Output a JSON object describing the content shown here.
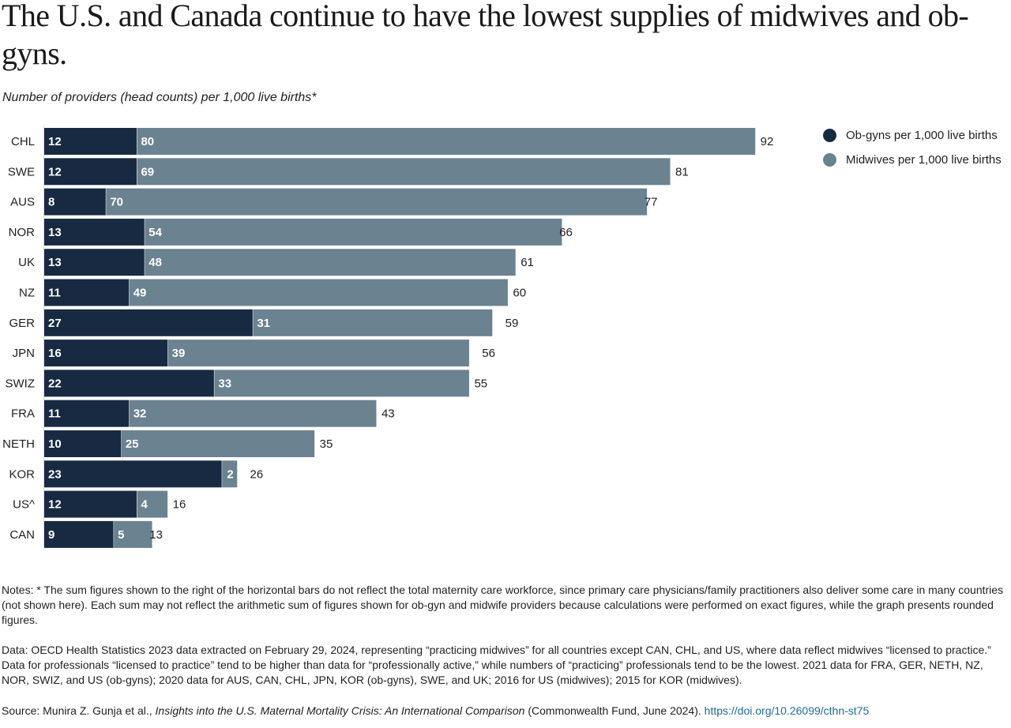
{
  "title": "The U.S. and Canada continue to have the lowest supplies of midwives and ob-gyns.",
  "subtitle": "Number of providers (head counts) per 1,000 live births*",
  "legend": [
    {
      "label": "Ob-gyns per 1,000 live births",
      "color": "#172a41"
    },
    {
      "label": "Midwives per 1,000 live births",
      "color": "#6b8290"
    }
  ],
  "chart_data": {
    "type": "bar",
    "orientation": "horizontal",
    "stacked": true,
    "title": "The U.S. and Canada continue to have the lowest supplies of midwives and ob-gyns.",
    "subtitle": "Number of providers (head counts) per 1,000 live births*",
    "xlabel": "",
    "ylabel": "",
    "xlim": [
      0,
      92
    ],
    "grid": false,
    "legend_position": "top-right",
    "categories": [
      "CHL",
      "SWE",
      "AUS",
      "NOR",
      "UK",
      "NZ",
      "GER",
      "JPN",
      "SWIZ",
      "FRA",
      "NETH",
      "KOR",
      "US^",
      "CAN"
    ],
    "series": [
      {
        "name": "Ob-gyns per 1,000 live births",
        "color": "#172a41",
        "values": [
          12,
          12,
          8,
          13,
          13,
          11,
          27,
          16,
          22,
          11,
          10,
          23,
          12,
          9
        ]
      },
      {
        "name": "Midwives per 1,000 live births",
        "color": "#6b8290",
        "values": [
          80,
          69,
          70,
          54,
          48,
          49,
          31,
          39,
          33,
          32,
          25,
          2,
          4,
          5
        ]
      }
    ],
    "totals": [
      92,
      81,
      77,
      66,
      61,
      60,
      59,
      56,
      55,
      43,
      35,
      26,
      16,
      13
    ]
  },
  "notes": {
    "note_1": "Notes: * The sum figures shown to the right of the horizontal bars do not reflect the total maternity care workforce, since primary care physicians/family practitioners also deliver some care in many countries (not shown here). Each sum may not reflect the arithmetic sum of figures shown for ob-gyn and midwife providers because calculations were performed on exact figures, while the graph presents rounded figures.",
    "note_2": "Data: OECD Health Statistics 2023 data extracted on February 29, 2024, representing “practicing midwives” for all countries except CAN, CHL, and US, where data reflect midwives “licensed to practice.” Data for professionals “licensed to practice” tend to be higher than data for “professionally active,” while numbers of “practicing” professionals tend to be the lowest. 2021 data for FRA, GER, NETH, NZ, NOR, SWIZ, and US (ob-gyns); 2020 data for AUS, CAN, CHL, JPN, KOR (ob-gyns), SWE, and UK; 2016 for US (midwives); 2015 for KOR (midwives).",
    "source_prefix": "Source: Munira Z. Gunja et al., ",
    "source_title": "Insights into the U.S. Maternal Mortality Crisis: An International Comparison",
    "source_suffix": " (Commonwealth Fund, June 2024). ",
    "source_link": "https://doi.org/10.26099/cthn-st75"
  }
}
